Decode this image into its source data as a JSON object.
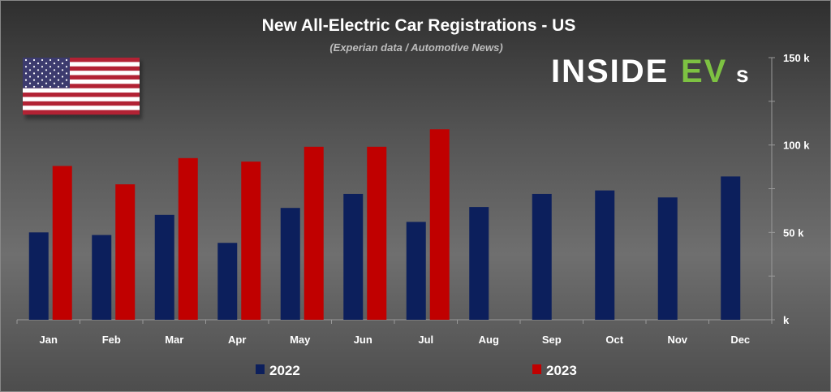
{
  "chart_data": {
    "type": "bar",
    "title": "New All-Electric Car Registrations - US",
    "subtitle": "(Experian data / Automotive News)",
    "logo_text": "INSIDEEVs",
    "categories": [
      "Jan",
      "Feb",
      "Mar",
      "Apr",
      "May",
      "Jun",
      "Jul",
      "Aug",
      "Sep",
      "Oct",
      "Nov",
      "Dec"
    ],
    "series": [
      {
        "name": "2022",
        "color": "#0c1f5c",
        "values": [
          50,
          48.5,
          60,
          44,
          64,
          72,
          56,
          64.5,
          72,
          74,
          70,
          82
        ]
      },
      {
        "name": "2023",
        "color": "#c00000",
        "values": [
          88,
          77.5,
          92.5,
          90.5,
          99,
          99,
          109,
          null,
          null,
          null,
          null,
          null
        ]
      }
    ],
    "y_ticks": [
      {
        "value": 0,
        "label": "k"
      },
      {
        "value": 50,
        "label": "50 k"
      },
      {
        "value": 100,
        "label": "100 k"
      },
      {
        "value": 150,
        "label": "150 k"
      }
    ],
    "ylim": [
      0,
      150
    ],
    "y_axis_side": "right",
    "grid": false,
    "legend_position": "bottom",
    "xlabel": "",
    "ylabel": ""
  }
}
